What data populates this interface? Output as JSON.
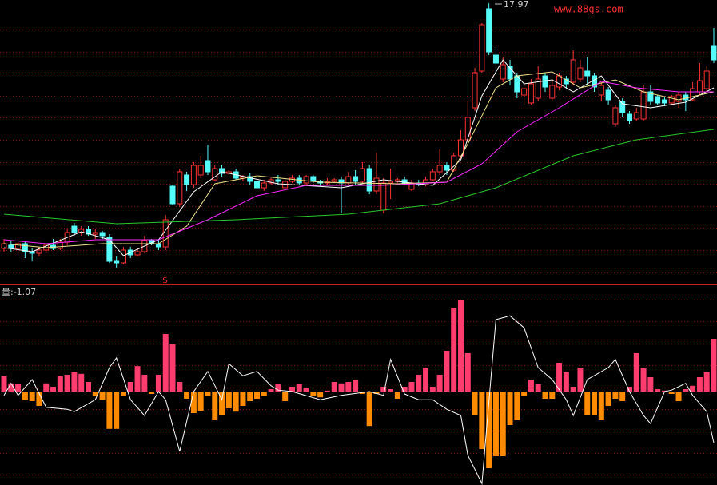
{
  "chart_data": [
    {
      "type": "candlestick",
      "watermark": "www.88gs.com",
      "annotation": "17.97",
      "marker": "$",
      "xlim": [
        0,
        101
      ],
      "ylim": [
        9.2,
        18.075
      ],
      "up_color": "#ff3232",
      "down_color": "#54fcfc",
      "open": [
        10.3,
        10.4,
        10.3,
        10.45,
        10.2,
        10.15,
        10.25,
        10.4,
        10.3,
        10.5,
        11.0,
        10.8,
        10.9,
        10.75,
        10.8,
        10.65,
        9.9,
        9.85,
        10.25,
        10.1,
        10.2,
        10.55,
        10.45,
        10.35,
        12.25,
        11.7,
        12.6,
        12.3,
        12.6,
        13.05,
        12.45,
        12.8,
        12.65,
        12.7,
        12.5,
        12.55,
        12.4,
        12.2,
        12.35,
        12.45,
        12.2,
        12.4,
        12.5,
        12.35,
        12.55,
        12.4,
        12.35,
        12.4,
        12.45,
        12.35,
        12.55,
        12.4,
        12.8,
        12.1,
        11.5,
        12.35,
        12.4,
        12.45,
        12.15,
        12.35,
        12.3,
        12.45,
        12.7,
        12.9,
        12.75,
        13.2,
        13.7,
        14.7,
        15.85,
        17.8,
        16.35,
        15.6,
        16.0,
        15.7,
        15.1,
        14.85,
        15.0,
        15.7,
        15.0,
        15.35,
        15.6,
        15.5,
        15.6,
        15.85,
        15.7,
        15.1,
        15.25,
        14.2,
        14.9,
        14.5,
        14.35,
        14.35,
        15.2,
        15.05,
        14.95,
        14.85,
        14.9,
        15.1,
        14.95,
        15.2,
        15.3,
        16.65
      ],
      "close": [
        10.45,
        10.3,
        10.45,
        10.2,
        10.15,
        10.25,
        10.4,
        10.3,
        10.5,
        10.8,
        10.8,
        10.9,
        10.75,
        10.8,
        10.7,
        9.9,
        9.85,
        10.25,
        10.1,
        10.2,
        10.55,
        10.45,
        10.35,
        11.2,
        11.7,
        12.7,
        12.3,
        12.9,
        12.9,
        12.7,
        12.8,
        12.65,
        12.7,
        12.5,
        12.55,
        12.4,
        12.2,
        12.35,
        12.45,
        12.4,
        12.4,
        12.5,
        12.35,
        12.55,
        12.4,
        12.35,
        12.4,
        12.45,
        12.35,
        12.55,
        12.4,
        12.8,
        12.1,
        12.5,
        12.35,
        12.4,
        12.45,
        12.35,
        12.35,
        12.3,
        12.45,
        12.7,
        12.9,
        12.75,
        13.2,
        13.7,
        14.4,
        15.8,
        17.3,
        16.45,
        16.1,
        16.05,
        15.6,
        15.2,
        15.3,
        15.45,
        15.6,
        15.35,
        15.4,
        15.7,
        15.45,
        16.2,
        15.95,
        15.7,
        15.35,
        15.4,
        14.95,
        14.7,
        14.55,
        14.3,
        14.55,
        15.2,
        14.9,
        14.85,
        14.85,
        15.05,
        15.1,
        14.95,
        15.3,
        15.55,
        15.85,
        16.2
      ],
      "high": [
        10.6,
        10.55,
        10.5,
        10.5,
        10.3,
        10.35,
        10.45,
        10.6,
        10.6,
        10.9,
        11.1,
        11.0,
        11.0,
        10.9,
        10.85,
        10.75,
        10.05,
        10.35,
        10.35,
        10.3,
        10.7,
        10.6,
        10.6,
        11.35,
        12.3,
        12.8,
        12.7,
        13.0,
        13.2,
        13.55,
        12.9,
        12.9,
        12.75,
        12.8,
        12.6,
        12.65,
        12.5,
        12.45,
        12.5,
        12.6,
        12.5,
        12.6,
        12.6,
        12.6,
        12.6,
        12.45,
        12.5,
        12.5,
        12.55,
        12.7,
        12.75,
        13.0,
        12.9,
        13.3,
        12.5,
        12.8,
        12.5,
        12.55,
        12.45,
        12.45,
        12.55,
        12.8,
        13.4,
        13.0,
        13.3,
        14.0,
        14.9,
        15.95,
        17.35,
        17.97,
        16.6,
        16.3,
        16.2,
        15.8,
        15.5,
        15.6,
        16.0,
        15.8,
        15.6,
        15.8,
        15.7,
        16.5,
        16.2,
        16.3,
        15.8,
        15.5,
        15.35,
        14.8,
        15.0,
        14.6,
        14.7,
        15.4,
        15.4,
        15.1,
        15.05,
        15.1,
        15.2,
        15.2,
        15.5,
        16.1,
        16.0,
        17.2
      ],
      "low": [
        10.2,
        10.2,
        10.1,
        10.0,
        9.9,
        10.05,
        10.15,
        10.25,
        10.25,
        10.4,
        10.7,
        10.7,
        10.7,
        10.6,
        10.6,
        9.85,
        9.7,
        9.8,
        10.0,
        10.05,
        10.15,
        10.4,
        10.25,
        10.25,
        11.65,
        11.6,
        12.1,
        12.2,
        12.5,
        12.6,
        12.4,
        12.55,
        12.6,
        12.45,
        12.4,
        12.3,
        12.1,
        12.1,
        12.3,
        12.3,
        12.15,
        12.35,
        12.3,
        12.3,
        12.35,
        12.25,
        12.3,
        12.35,
        11.4,
        12.3,
        12.3,
        12.35,
        12.0,
        12.0,
        11.4,
        11.85,
        12.35,
        12.3,
        12.1,
        12.25,
        12.25,
        12.4,
        12.6,
        12.6,
        12.7,
        13.1,
        13.6,
        14.6,
        15.8,
        16.35,
        15.8,
        15.5,
        15.4,
        15.0,
        14.8,
        14.8,
        14.9,
        15.2,
        14.9,
        15.25,
        15.3,
        15.4,
        15.5,
        15.4,
        15.2,
        14.9,
        14.8,
        14.1,
        14.4,
        14.2,
        14.3,
        14.3,
        14.8,
        14.8,
        14.75,
        14.8,
        14.7,
        14.6,
        14.9,
        15.1,
        15.2,
        16.1
      ],
      "lines": [
        {
          "color": "#ffffff",
          "x": [
            0,
            4,
            11,
            15,
            17,
            22,
            27,
            31,
            39,
            48,
            54,
            61,
            65,
            68,
            71,
            74,
            78,
            81,
            85,
            88,
            92,
            97,
            101
          ],
          "values": [
            10.325,
            10.2,
            10.825,
            10.575,
            10.075,
            10.575,
            12.075,
            12.7,
            12.325,
            12.2,
            12.45,
            12.275,
            13.075,
            15.075,
            16.2,
            15.45,
            15.575,
            15.2,
            15.7,
            14.825,
            14.7,
            14.875,
            15.325
          ]
        },
        {
          "color": "#f0e68c",
          "x": [
            0,
            6,
            14,
            22,
            26,
            30,
            36,
            45,
            56,
            63,
            66,
            70,
            73,
            78,
            82,
            87,
            91,
            96,
            101
          ],
          "values": [
            10.45,
            10.325,
            10.45,
            10.45,
            11.0,
            12.325,
            12.575,
            12.375,
            12.325,
            12.375,
            13.575,
            15.325,
            15.7,
            15.825,
            15.325,
            15.575,
            15.2,
            14.95,
            15.2
          ]
        },
        {
          "color": "#ff28ff",
          "x": [
            0,
            6,
            13,
            22,
            29,
            36,
            43,
            54,
            63,
            68,
            73,
            79,
            85,
            90,
            96,
            101
          ],
          "values": [
            10.575,
            10.45,
            10.575,
            10.575,
            11.2,
            11.95,
            12.275,
            12.275,
            12.375,
            12.95,
            13.95,
            14.7,
            15.525,
            15.325,
            15.2,
            15.2
          ]
        },
        {
          "color": "#28c828",
          "x": [
            0,
            16,
            33,
            49,
            62,
            70,
            81,
            90,
            101
          ],
          "values": [
            11.375,
            11.075,
            11.2,
            11.375,
            11.7,
            12.2,
            13.2,
            13.7,
            14.025
          ]
        }
      ]
    },
    {
      "type": "bar",
      "label": "量:-1.07",
      "xlim": [
        0,
        101
      ],
      "ylim": [
        -1.95,
        2.2
      ],
      "up_color": "#ff3c6e",
      "down_color": "#ff8c00",
      "values": [
        0.33,
        0.17,
        0.15,
        -0.17,
        -0.2,
        -0.3,
        0.17,
        0.1,
        0.33,
        0.35,
        0.4,
        0.37,
        0.2,
        -0.1,
        -0.17,
        -0.78,
        -0.78,
        -0.1,
        0.2,
        0.53,
        0.35,
        -0.05,
        0.35,
        1.2,
        1.0,
        0.2,
        -0.15,
        -0.45,
        -0.4,
        -0.1,
        -0.6,
        -0.5,
        -0.35,
        -0.42,
        -0.3,
        -0.2,
        -0.15,
        -0.1,
        0.05,
        0.15,
        -0.2,
        0.1,
        0.15,
        0.08,
        -0.1,
        -0.12,
        0.02,
        0.2,
        0.17,
        0.2,
        0.25,
        -0.05,
        -0.72,
        -0.05,
        0.1,
        0.05,
        -0.15,
        0.1,
        0.2,
        0.35,
        0.5,
        0.1,
        0.35,
        0.85,
        1.75,
        1.9,
        0.8,
        -0.5,
        -1.2,
        -1.6,
        -1.35,
        -1.35,
        -0.7,
        -0.6,
        -0.1,
        0.25,
        0.15,
        -0.15,
        -0.15,
        0.6,
        0.4,
        0.1,
        0.5,
        -0.5,
        -0.5,
        -0.6,
        -0.3,
        -0.15,
        -0.2,
        0.1,
        0.8,
        0.5,
        0.3,
        0.05,
        0.02,
        -0.05,
        -0.2,
        0.05,
        0.12,
        0.3,
        0.4,
        1.1
      ],
      "line": {
        "color": "#ffffff",
        "x": [
          0,
          1,
          2,
          4,
          6,
          9,
          10,
          13,
          15,
          16,
          18,
          20,
          22,
          23,
          25,
          27,
          29,
          31,
          32,
          34,
          36,
          38,
          39,
          41,
          45,
          48,
          52,
          54,
          55,
          57,
          59,
          61,
          63,
          65,
          66,
          68,
          70,
          72,
          74,
          76,
          78,
          80,
          81,
          83,
          86,
          87,
          89,
          91,
          92,
          94,
          95,
          97,
          98,
          100,
          101
        ],
        "values": [
          -0.08,
          0.17,
          -0.08,
          0.25,
          -0.33,
          -0.37,
          -0.42,
          -0.17,
          0.5,
          0.7,
          -0.17,
          -0.5,
          0,
          -0.17,
          -1.25,
          0,
          0.42,
          -0.17,
          0.58,
          0.33,
          0.42,
          0.12,
          0.03,
          0,
          -0.17,
          -0.08,
          0,
          -0.08,
          0.67,
          -0.05,
          -0.17,
          -0.17,
          -0.37,
          -0.5,
          -1.33,
          -1.92,
          1.5,
          1.58,
          1.33,
          0.5,
          0.25,
          -0.17,
          -0.5,
          0.25,
          0.5,
          0.67,
          0,
          -0.5,
          -0.67,
          0,
          0.03,
          0.17,
          -0.08,
          -0.42,
          -1.07
        ]
      }
    }
  ]
}
